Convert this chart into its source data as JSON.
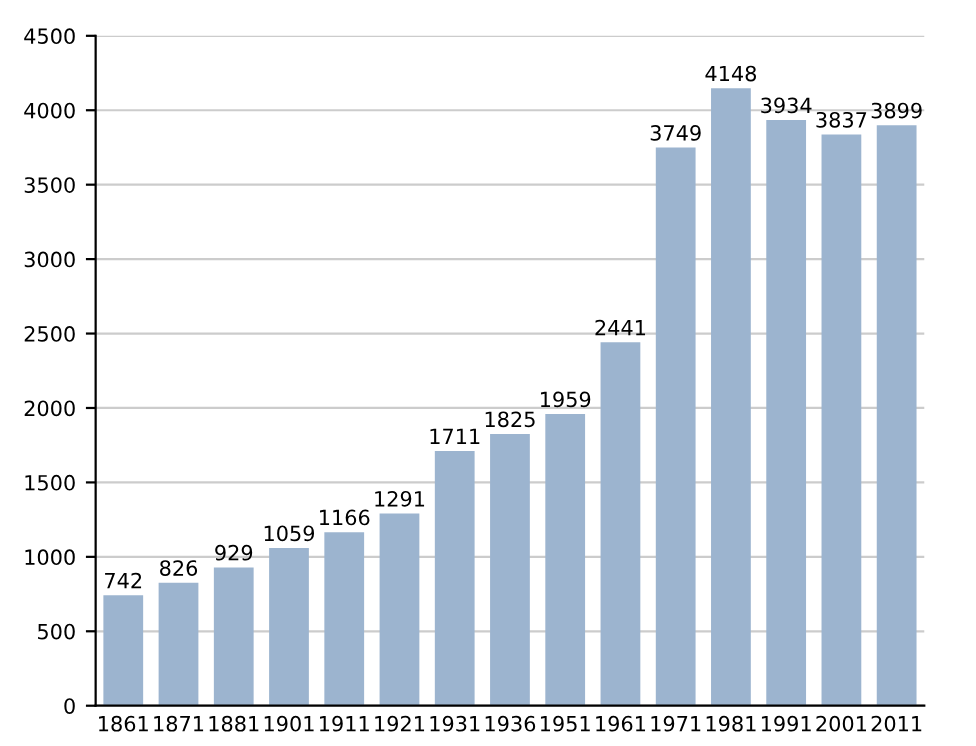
{
  "chart_data": {
    "type": "bar",
    "categories": [
      "1861",
      "1871",
      "1881",
      "1901",
      "1911",
      "1921",
      "1931",
      "1936",
      "1951",
      "1961",
      "1971",
      "1981",
      "1991",
      "2001",
      "2011"
    ],
    "values": [
      742,
      826,
      929,
      1059,
      1166,
      1291,
      1711,
      1825,
      1959,
      2441,
      3749,
      4148,
      3934,
      3837,
      3899
    ],
    "color": "#9cb4cf",
    "ylim": [
      0,
      4500
    ],
    "yticks": [
      0,
      500,
      1000,
      1500,
      2000,
      2500,
      3000,
      3500,
      4000,
      4500
    ],
    "grid": "y",
    "data_labels": true
  }
}
